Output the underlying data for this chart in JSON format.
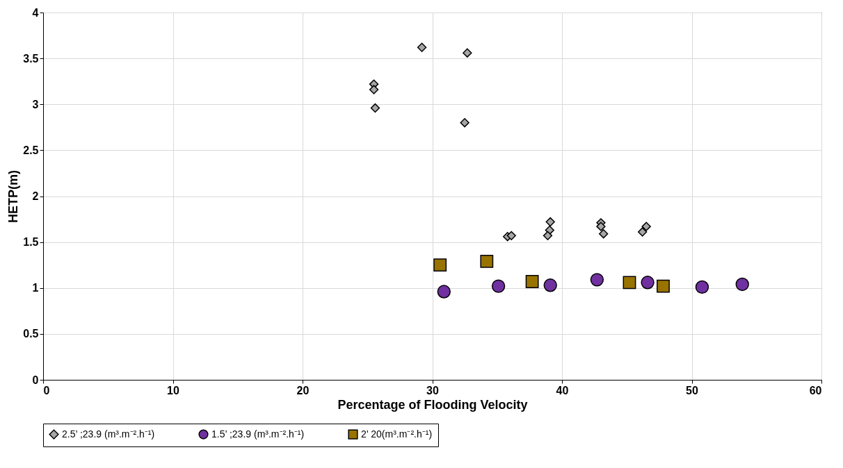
{
  "chart_data": {
    "type": "scatter",
    "xlabel": "Percentage of Flooding Velocity",
    "ylabel": "HETP(m)",
    "xlim": [
      0,
      60
    ],
    "xticks": [
      0,
      10,
      20,
      30,
      40,
      50,
      60
    ],
    "ylim": [
      0,
      4
    ],
    "yticks": [
      0,
      0.5,
      1,
      1.5,
      2,
      2.5,
      3,
      3.5,
      4
    ],
    "grid": true,
    "legend": "bottom",
    "series": [
      {
        "name": "2.5’ ;23.9 (m³.m⁻².h⁻¹)",
        "color": "#a6a6a6",
        "marker": "diamond",
        "x": [
          25.5,
          25.5,
          25.6,
          29.2,
          32.7,
          32.5,
          35.8,
          36.1,
          39.1,
          39.05,
          38.9,
          43.0,
          43.0,
          43.2,
          46.2,
          46.5
        ],
        "values": [
          3.22,
          3.16,
          2.96,
          3.62,
          3.56,
          2.8,
          1.56,
          1.57,
          1.72,
          1.63,
          1.57,
          1.71,
          1.67,
          1.59,
          1.61,
          1.67
        ]
      },
      {
        "name": "1.5’ ;23.9 (m³.m⁻².h⁻¹)",
        "color": "#7030a0",
        "marker": "circle",
        "x": [
          30.9,
          35.1,
          39.1,
          42.7,
          46.6,
          50.8,
          53.9
        ],
        "values": [
          0.96,
          1.02,
          1.03,
          1.09,
          1.06,
          1.01,
          1.04
        ]
      },
      {
        "name": "2’ 20(m³.m⁻².h⁻¹)",
        "color": "#997300",
        "marker": "square",
        "x": [
          30.6,
          34.2,
          37.7,
          45.2,
          47.8
        ],
        "values": [
          1.25,
          1.29,
          1.07,
          1.06,
          1.02
        ]
      }
    ]
  }
}
